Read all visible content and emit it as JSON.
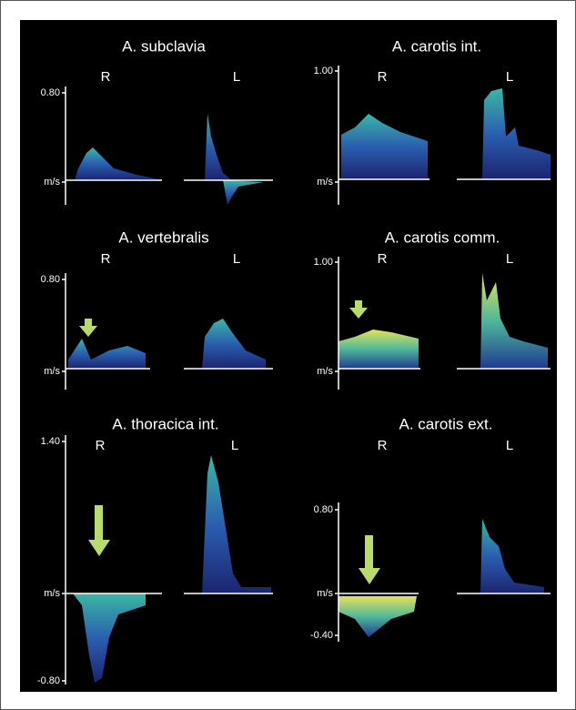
{
  "panels": [
    {
      "title": "A. subclavia",
      "right_label": "R",
      "left_label": "L",
      "axis_labels": [
        "0.80",
        "m/s"
      ]
    },
    {
      "title": "A. carotis int.",
      "right_label": "R",
      "left_label": "L",
      "axis_labels": [
        "1.00",
        "m/s"
      ]
    },
    {
      "title": "A. vertebralis",
      "right_label": "R",
      "left_label": "L",
      "axis_labels": [
        "0.80",
        "m/s"
      ]
    },
    {
      "title": "A. carotis comm.",
      "right_label": "R",
      "left_label": "L",
      "axis_labels": [
        "1.00",
        "m/s"
      ]
    },
    {
      "title": "A. thoracica int.",
      "right_label": "R",
      "left_label": "L",
      "axis_labels": [
        "1.40",
        "m/s",
        "-0.80"
      ]
    },
    {
      "title": "A. carotis ext.",
      "right_label": "R",
      "left_label": "L",
      "axis_labels": [
        "0.80",
        "m/s",
        "-0.40"
      ]
    }
  ]
}
